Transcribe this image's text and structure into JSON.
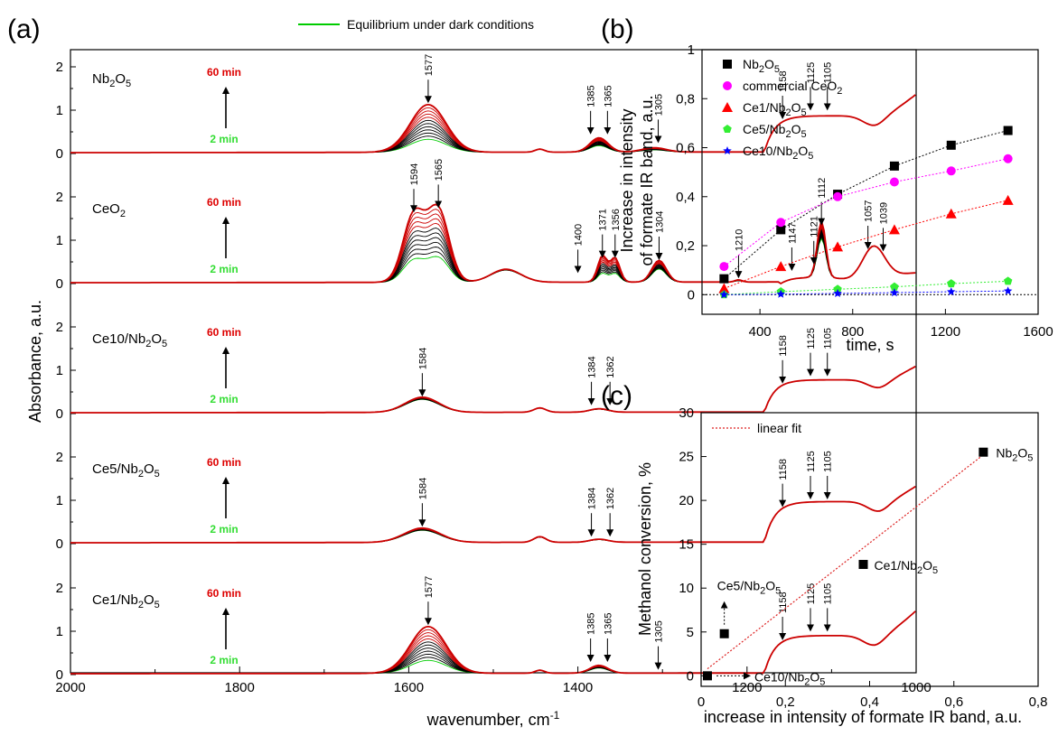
{
  "chart_data": [
    {
      "id": "a",
      "panel_label": "(a)",
      "type": "line",
      "xlabel": "wavenumber, cm",
      "xlabel_sup": "-1",
      "ylabel": "Absorbance, a.u.",
      "xlim": [
        2000,
        1000
      ],
      "x_ticks": [
        "2000",
        "1800",
        "1600",
        "1400",
        "1200",
        "1000"
      ],
      "x_tick_values": [
        2000,
        1800,
        1600,
        1400,
        1200,
        1000
      ],
      "y_ticks": [
        "0",
        "1",
        "2"
      ],
      "legend": "Equilibrium under dark conditions",
      "legend_color": "#00cc00",
      "time_label_max": "60 min",
      "time_label_min": "2 min",
      "colors": {
        "dark": "#00cc00",
        "first": "#00cc00",
        "last": "#cc0000",
        "mid": "#000000"
      },
      "subplots": [
        {
          "sample": "Nb",
          "sub": "2",
          "mid": "O",
          "sub2": "5",
          "annotations": [
            "1577",
            "1385",
            "1365",
            "1305",
            "1158",
            "1125",
            "1105"
          ],
          "ann_x": [
            1577,
            1385,
            1365,
            1305,
            1158,
            1125,
            1105
          ],
          "ann_y": [
            1.12,
            0.4,
            0.4,
            0.2,
            0.75,
            0.95,
            0.95
          ],
          "peaks": [
            {
              "center": 1577,
              "width": 30,
              "height": 1.1,
              "base": 0.3
            },
            {
              "center": 1445,
              "width": 8,
              "height": 0.07,
              "base": 0.07
            },
            {
              "center": 1375,
              "width": 15,
              "height": 0.33,
              "base": 0.15
            },
            {
              "center": 1310,
              "width": 20,
              "height": 0.1,
              "base": 0.05
            }
          ],
          "edge": {
            "start": 1180,
            "level": 0.87,
            "dip_center": 1050,
            "dip": 0.65,
            "end": 1.37
          }
        },
        {
          "sample": "CeO",
          "sub": "2",
          "mid": "",
          "sub2": "",
          "annotations": [
            "1594",
            "1565",
            "1400",
            "1371",
            "1356",
            "1304",
            "1210",
            "1147",
            "1121",
            "1112",
            "1057",
            "1039"
          ],
          "ann_x": [
            1594,
            1565,
            1400,
            1371,
            1356,
            1304,
            1210,
            1147,
            1121,
            1112,
            1057,
            1039
          ],
          "ann_y": [
            1.6,
            1.7,
            0.2,
            0.55,
            0.55,
            0.5,
            0.08,
            0.25,
            0.4,
            1.3,
            0.75,
            0.7
          ],
          "peaks": [
            {
              "center": 1594,
              "width": 18,
              "height": 1.55,
              "base": 0.5
            },
            {
              "center": 1565,
              "width": 18,
              "height": 1.65,
              "base": 0.55
            },
            {
              "center": 1485,
              "width": 25,
              "height": 0.3,
              "base": 0.28
            },
            {
              "center": 1371,
              "width": 8,
              "height": 0.6,
              "base": 0.2
            },
            {
              "center": 1356,
              "width": 8,
              "height": 0.55,
              "base": 0.2
            },
            {
              "center": 1304,
              "width": 12,
              "height": 0.5,
              "base": 0.3
            },
            {
              "center": 1210,
              "width": 6,
              "height": 0.05,
              "base": 0.03
            },
            {
              "center": 1112,
              "width": 7,
              "height": 1.3,
              "base": 0.9
            },
            {
              "center": 1050,
              "width": 18,
              "height": 0.7,
              "base": 0.7
            }
          ],
          "edge": {
            "start": 1160,
            "level": 0.15,
            "dip_center": 1080,
            "dip": 0.1,
            "end": 0.25
          }
        },
        {
          "sample": "Ce10/Nb",
          "sub": "2",
          "mid": "O",
          "sub2": "5",
          "annotations": [
            "1584",
            "1384",
            "1362",
            "1158",
            "1125",
            "1105"
          ],
          "ann_x": [
            1584,
            1384,
            1362,
            1158,
            1125,
            1105
          ],
          "ann_y": [
            0.35,
            0.15,
            0.15,
            0.65,
            0.82,
            0.82
          ],
          "peaks": [
            {
              "center": 1584,
              "width": 28,
              "height": 0.35,
              "base": 0.3
            },
            {
              "center": 1445,
              "width": 10,
              "height": 0.1,
              "base": 0.1
            },
            {
              "center": 1375,
              "width": 15,
              "height": 0.08,
              "base": 0.07
            }
          ],
          "edge": {
            "start": 1180,
            "level": 0.78,
            "dip_center": 1045,
            "dip": 0.6,
            "end": 1.1
          }
        },
        {
          "sample": "Ce5/Nb",
          "sub": "2",
          "mid": "O",
          "sub2": "5",
          "annotations": [
            "1584",
            "1384",
            "1362",
            "1158",
            "1125",
            "1105"
          ],
          "ann_x": [
            1584,
            1384,
            1362,
            1158,
            1125,
            1105
          ],
          "ann_y": [
            0.35,
            0.12,
            0.12,
            0.8,
            0.98,
            0.98
          ],
          "peaks": [
            {
              "center": 1584,
              "width": 30,
              "height": 0.33,
              "base": 0.28
            },
            {
              "center": 1445,
              "width": 10,
              "height": 0.13,
              "base": 0.12
            },
            {
              "center": 1375,
              "width": 15,
              "height": 0.07,
              "base": 0.06
            }
          ],
          "edge": {
            "start": 1180,
            "level": 0.97,
            "dip_center": 1045,
            "dip": 0.75,
            "end": 1.33
          }
        },
        {
          "sample": "Ce1/Nb",
          "sub": "2",
          "mid": "O",
          "sub2": "5",
          "annotations": [
            "1577",
            "1385",
            "1365",
            "1305",
            "1158",
            "1125",
            "1105"
          ],
          "ann_x": [
            1577,
            1385,
            1365,
            1305,
            1158,
            1125,
            1105
          ],
          "ann_y": [
            1.1,
            0.25,
            0.25,
            0.07,
            0.75,
            0.95,
            0.95
          ],
          "peaks": [
            {
              "center": 1577,
              "width": 30,
              "height": 1.08,
              "base": 0.3
            },
            {
              "center": 1445,
              "width": 8,
              "height": 0.07,
              "base": 0.07
            },
            {
              "center": 1375,
              "width": 15,
              "height": 0.18,
              "base": 0.12
            }
          ],
          "edge": {
            "start": 1180,
            "level": 0.9,
            "dip_center": 1050,
            "dip": 0.68,
            "end": 1.48
          }
        }
      ]
    },
    {
      "id": "b",
      "panel_label": "(b)",
      "type": "scatter",
      "xlabel": "time, s",
      "ylabel_line1": "Increase in intensity",
      "ylabel_line2": "of formate IR band, a.u.",
      "xlim": [
        150,
        1600
      ],
      "ylim": [
        -0.08,
        1.0
      ],
      "x_ticks": [
        "400",
        "800",
        "1200",
        "1600"
      ],
      "x_tick_values": [
        400,
        800,
        1200,
        1600
      ],
      "y_ticks": [
        "0",
        "0,2",
        "0,4",
        "0,6",
        "0,8",
        "1"
      ],
      "y_tick_values": [
        0,
        0.2,
        0.4,
        0.6,
        0.8,
        1.0
      ],
      "x": [
        245,
        490,
        735,
        980,
        1225,
        1470
      ],
      "series": [
        {
          "name": "Nb",
          "sub": "2",
          "mid": "O",
          "sub2": "5",
          "marker": "square",
          "color": "#000000",
          "values": [
            0.065,
            0.265,
            0.41,
            0.525,
            0.61,
            0.67
          ]
        },
        {
          "name": "commercial CeO",
          "sub": "2",
          "mid": "",
          "sub2": "",
          "marker": "circle",
          "color": "#ff00ff",
          "values": [
            0.115,
            0.295,
            0.4,
            0.46,
            0.505,
            0.555
          ]
        },
        {
          "name": "Ce1/Nb",
          "sub": "2",
          "mid": "O",
          "sub2": "5",
          "marker": "triangle",
          "color": "#ff0000",
          "values": [
            0.025,
            0.115,
            0.195,
            0.265,
            0.33,
            0.385
          ]
        },
        {
          "name": "Ce5/Nb",
          "sub": "2",
          "mid": "O",
          "sub2": "5",
          "marker": "pentagon",
          "color": "#33ee33",
          "values": [
            0.0,
            0.012,
            0.022,
            0.032,
            0.045,
            0.055
          ]
        },
        {
          "name": "Ce10/Nb",
          "sub": "2",
          "mid": "O",
          "sub2": "5",
          "marker": "star",
          "color": "#0000ff",
          "values": [
            0.0,
            0.002,
            0.005,
            0.008,
            0.012,
            0.015
          ]
        }
      ]
    },
    {
      "id": "c",
      "panel_label": "(c)",
      "type": "scatter",
      "xlabel": "increase in intensity of formate IR band, a.u.",
      "ylabel": "Methanol conversion, %",
      "xlim": [
        0,
        0.8
      ],
      "ylim": [
        -1.2,
        30
      ],
      "x_ticks": [
        "0",
        "0,2",
        "0,4",
        "0,6",
        "0,8"
      ],
      "x_tick_values": [
        0,
        0.2,
        0.4,
        0.6,
        0.8
      ],
      "y_ticks": [
        "0",
        "5",
        "10",
        "15",
        "20",
        "25",
        "30"
      ],
      "y_tick_values": [
        0,
        5,
        10,
        15,
        20,
        25,
        30
      ],
      "legend": "linear fit",
      "fit": {
        "x": [
          0.015,
          0.67
        ],
        "y": [
          0.8,
          25.2
        ],
        "color": "#dd2222"
      },
      "points": [
        {
          "name": "Nb",
          "sub": "2",
          "mid": "O",
          "sub2": "5",
          "x": 0.67,
          "y": 25.5
        },
        {
          "name": "Ce1/Nb",
          "sub": "2",
          "mid": "O",
          "sub2": "5",
          "x": 0.385,
          "y": 12.7
        },
        {
          "name": "Ce5/Nb",
          "sub": "2",
          "mid": "O",
          "sub2": "5",
          "x": 0.055,
          "y": 4.8
        },
        {
          "name": "Ce10/Nb",
          "sub": "2",
          "mid": "O",
          "sub2": "5",
          "x": 0.015,
          "y": 0.0
        }
      ]
    }
  ]
}
